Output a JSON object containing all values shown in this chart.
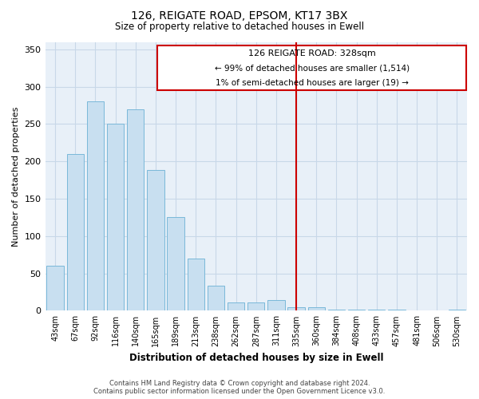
{
  "title1": "126, REIGATE ROAD, EPSOM, KT17 3BX",
  "title2": "Size of property relative to detached houses in Ewell",
  "xlabel": "Distribution of detached houses by size in Ewell",
  "ylabel": "Number of detached properties",
  "bar_labels": [
    "43sqm",
    "67sqm",
    "92sqm",
    "116sqm",
    "140sqm",
    "165sqm",
    "189sqm",
    "213sqm",
    "238sqm",
    "262sqm",
    "287sqm",
    "311sqm",
    "335sqm",
    "360sqm",
    "384sqm",
    "408sqm",
    "433sqm",
    "457sqm",
    "481sqm",
    "506sqm",
    "530sqm"
  ],
  "bar_values": [
    60,
    210,
    280,
    251,
    270,
    188,
    126,
    70,
    34,
    11,
    11,
    14,
    5,
    5,
    2,
    1,
    1,
    1,
    0,
    0,
    1
  ],
  "bar_color": "#c8dff0",
  "bar_edge_color": "#7ab8d9",
  "vline_color": "#cc0000",
  "annotation_title": "126 REIGATE ROAD: 328sqm",
  "annotation_line1": "← 99% of detached houses are smaller (1,514)",
  "annotation_line2": "1% of semi-detached houses are larger (19) →",
  "annotation_box_color": "#ffffff",
  "annotation_box_edge": "#cc0000",
  "ylim": [
    0,
    360
  ],
  "yticks": [
    0,
    50,
    100,
    150,
    200,
    250,
    300,
    350
  ],
  "footer1": "Contains HM Land Registry data © Crown copyright and database right 2024.",
  "footer2": "Contains public sector information licensed under the Open Government Licence v3.0.",
  "bg_color": "#ffffff",
  "grid_color": "#c8d8e8"
}
